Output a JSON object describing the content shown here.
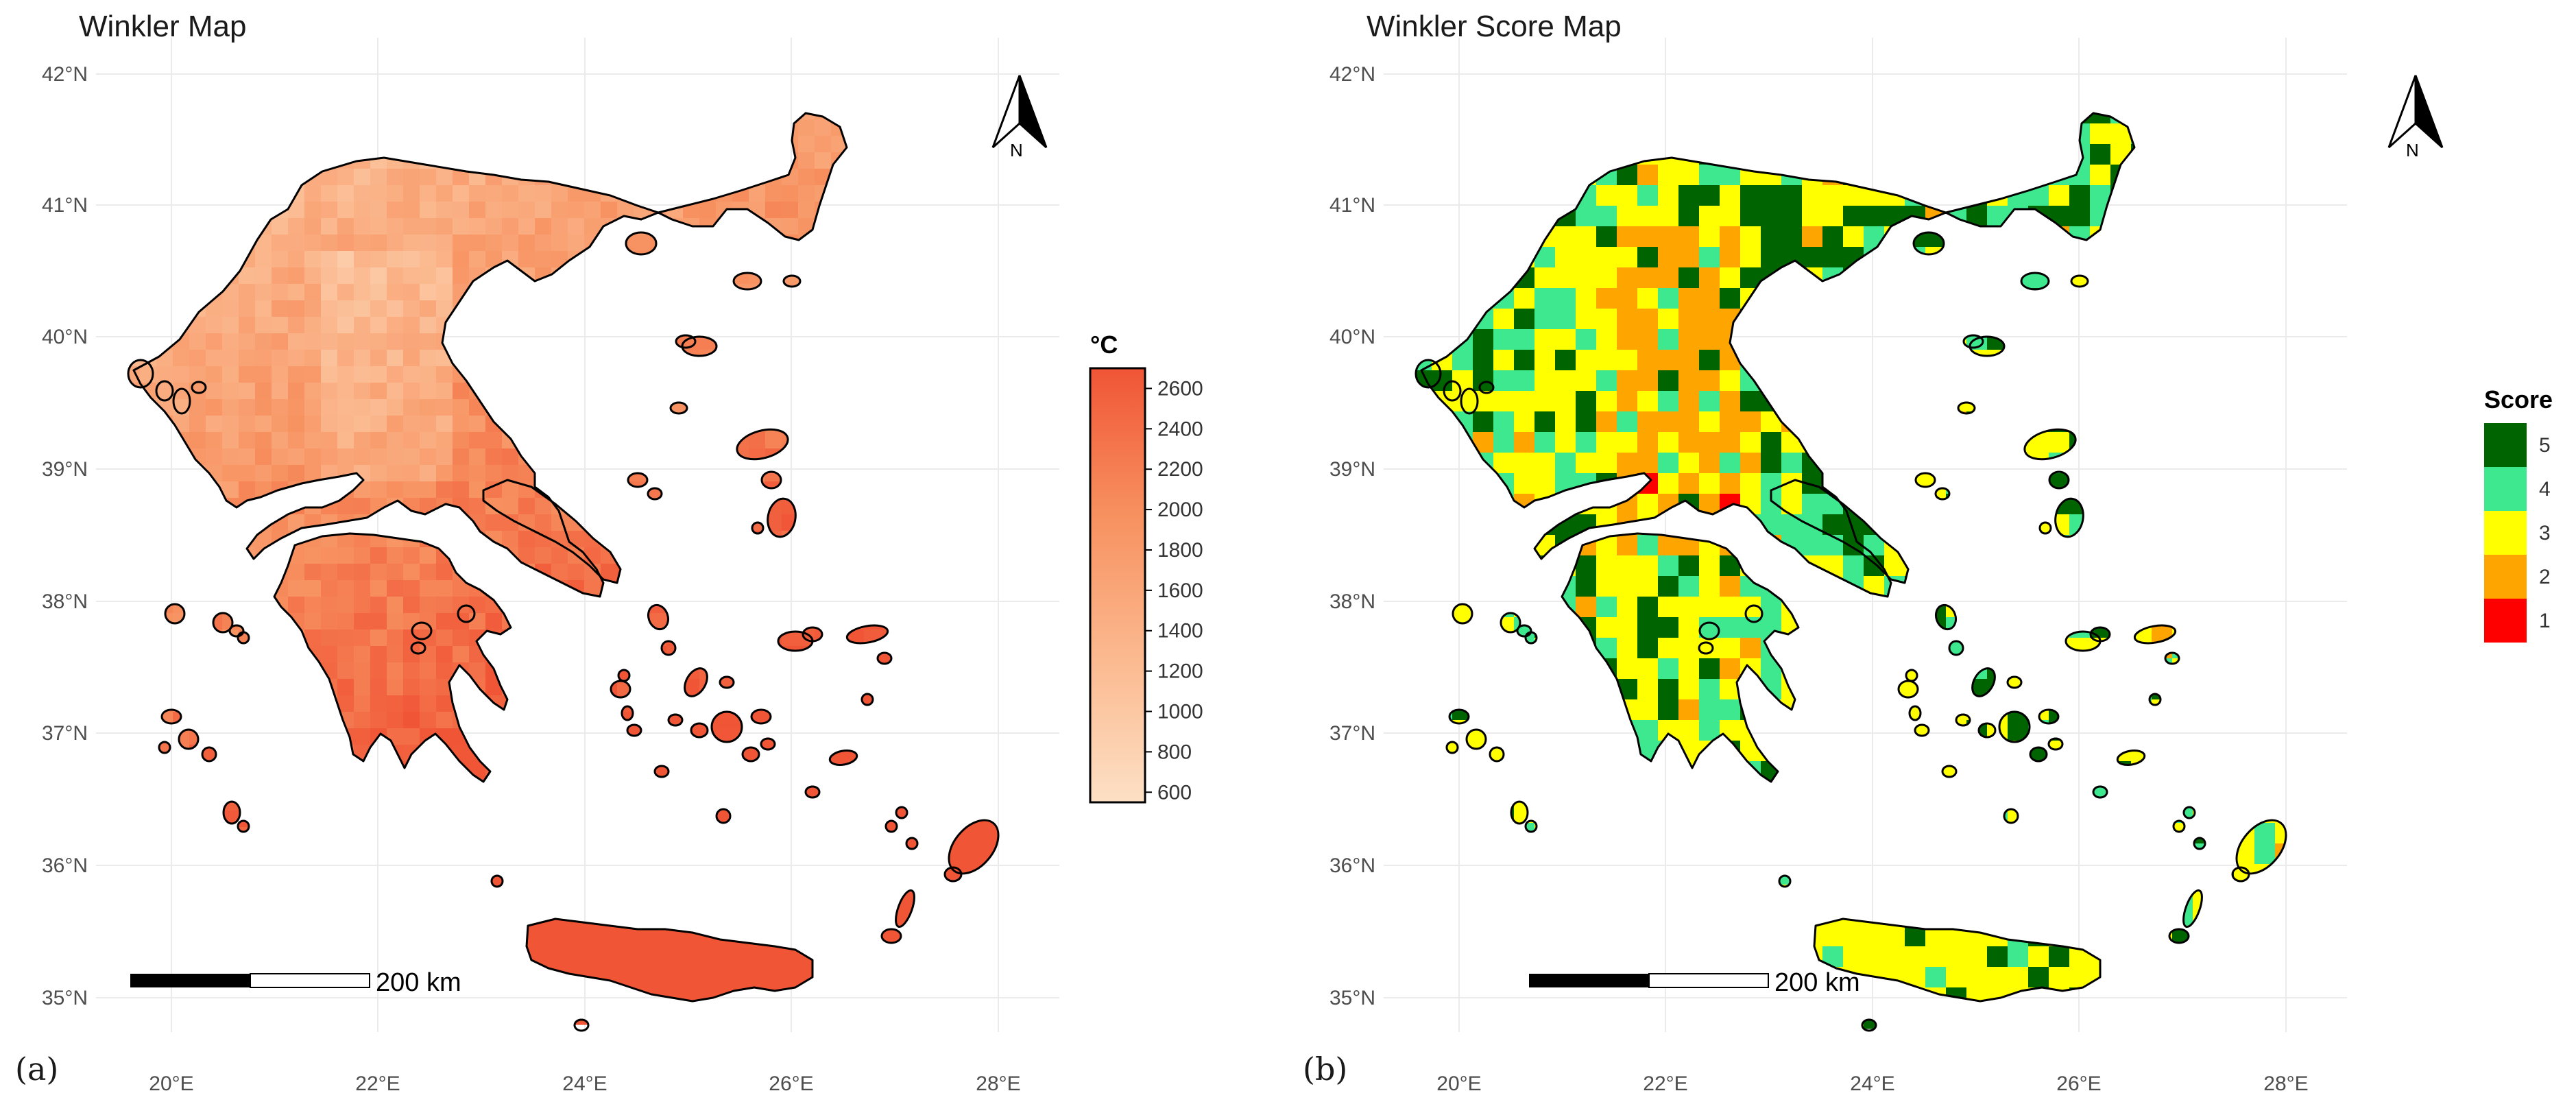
{
  "figure": {
    "panels": [
      {
        "id": "a",
        "letter": "(a)",
        "title": "Winkler Map",
        "legend": {
          "type": "continuous",
          "title": "°C",
          "ticks": [
            "2600",
            "2400",
            "2200",
            "2000",
            "1800",
            "1600",
            "1400",
            "1200",
            "1000",
            "800",
            "600"
          ],
          "range": [
            550,
            2700
          ],
          "colors": [
            "#fde0c5",
            "#fbb98f",
            "#f7905f",
            "#f05536"
          ]
        }
      },
      {
        "id": "b",
        "letter": "(b)",
        "title": "Winkler Score Map",
        "legend": {
          "type": "categorical",
          "title": "Score",
          "items": [
            {
              "label": "5",
              "color": "#006400"
            },
            {
              "label": "4",
              "color": "#3ee88f"
            },
            {
              "label": "3",
              "color": "#ffff00"
            },
            {
              "label": "2",
              "color": "#ffa500"
            },
            {
              "label": "1",
              "color": "#ff0000"
            }
          ]
        }
      }
    ],
    "axes": {
      "lat_labels": [
        "42°N",
        "41°N",
        "40°N",
        "39°N",
        "38°N",
        "37°N",
        "36°N",
        "35°N"
      ],
      "lon_labels": [
        "20°E",
        "22°E",
        "24°E",
        "26°E",
        "28°E"
      ]
    },
    "scale_bar": "200 km",
    "north_arrow": "N"
  }
}
